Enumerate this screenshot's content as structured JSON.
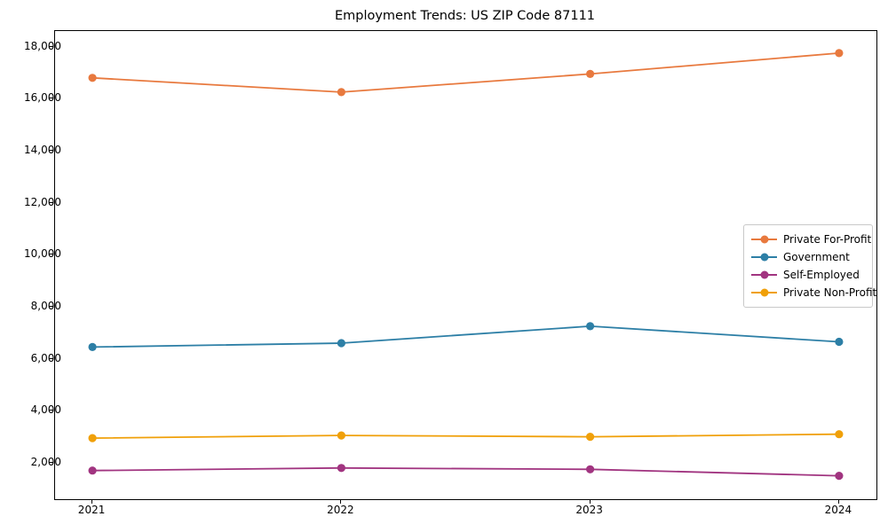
{
  "title": "Employment Trends: US ZIP Code 87111",
  "chart_data": {
    "type": "line",
    "title": "Employment Trends: US ZIP Code 87111",
    "xlabel": "",
    "ylabel": "",
    "x": [
      2021,
      2022,
      2023,
      2024
    ],
    "x_tick_labels": [
      "2021",
      "2022",
      "2023",
      "2024"
    ],
    "series": [
      {
        "name": "Private For-Profit",
        "color": "#e8793e",
        "values": [
          16800,
          16250,
          16950,
          17750
        ]
      },
      {
        "name": "Government",
        "color": "#2d7fa6",
        "values": [
          6450,
          6600,
          7250,
          6650
        ]
      },
      {
        "name": "Self-Employed",
        "color": "#a13480",
        "values": [
          1700,
          1800,
          1750,
          1500
        ]
      },
      {
        "name": "Private Non-Profit",
        "color": "#f0a009",
        "values": [
          2950,
          3050,
          3000,
          3100
        ]
      }
    ],
    "ylim": [
      600,
      18600
    ],
    "yticks": [
      2000,
      4000,
      6000,
      8000,
      10000,
      12000,
      14000,
      16000,
      18000
    ],
    "ytick_labels": [
      "2,000",
      "4,000",
      "6,000",
      "8,000",
      "10,000",
      "12,000",
      "14,000",
      "16,000",
      "18,000"
    ],
    "x_margin_frac": 0.0455,
    "grid": false,
    "legend_position": "center-right",
    "marker": "circle",
    "axis_color": "#000000",
    "legend_border_color": "#c9c9c9"
  }
}
